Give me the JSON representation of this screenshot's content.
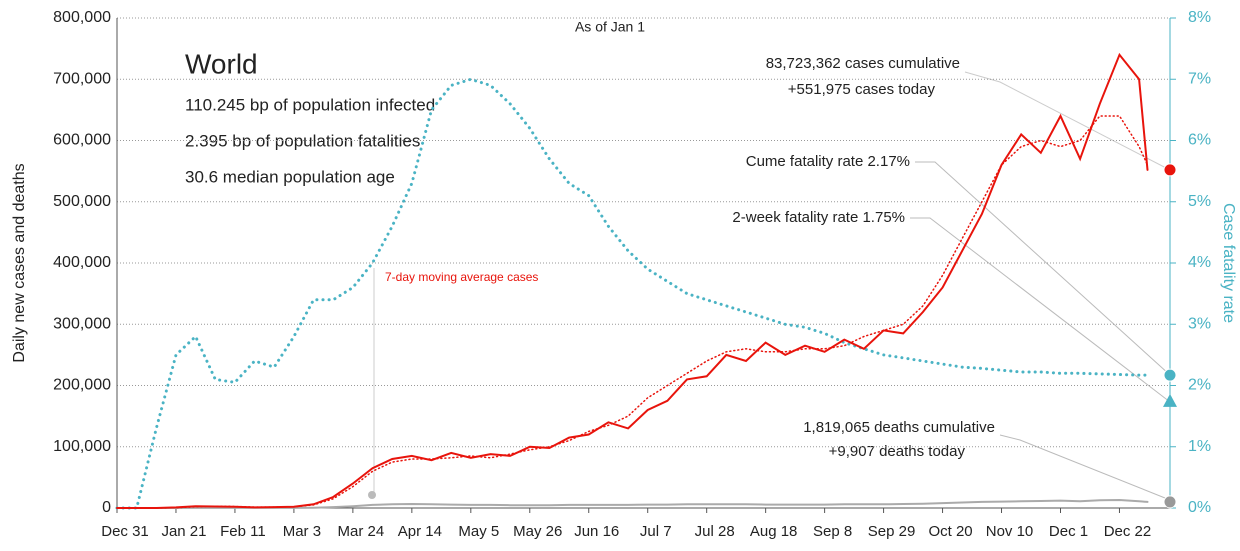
{
  "chart_data": {
    "type": "line",
    "title": "World",
    "subtitle": "As of Jan 1",
    "stats": [
      "110.245 bp of population infected",
      "2.395 bp of population fatalities",
      "30.6 median population age"
    ],
    "y_label": "Daily new cases and deaths",
    "y2_label": "Case fatality rate",
    "ma_label": "7-day moving average cases",
    "annotations": {
      "cases": [
        "83,723,362 cases cumulative",
        "+551,975 cases today"
      ],
      "cume_rate": "Cume fatality rate 2.17%",
      "two_week": "2-week fatality rate 1.75%",
      "deaths": [
        "1,819,065 deaths cumulative",
        "+9,907 deaths today"
      ]
    },
    "two_week_rate": 1.75,
    "x": [
      0,
      7,
      14,
      21,
      28,
      35,
      42,
      49,
      56,
      63,
      70,
      77,
      84,
      91,
      98,
      105,
      112,
      119,
      126,
      133,
      140,
      147,
      154,
      161,
      168,
      175,
      182,
      189,
      196,
      203,
      210,
      217,
      224,
      231,
      238,
      245,
      252,
      259,
      266,
      273,
      280,
      287,
      294,
      301,
      308,
      315,
      322,
      329,
      336,
      343,
      350,
      357,
      364,
      367
    ],
    "xlim": [
      0,
      375
    ],
    "xticks": [
      {
        "value": 0,
        "label": "Dec 31"
      },
      {
        "value": 21,
        "label": "Jan 21"
      },
      {
        "value": 42,
        "label": "Feb 11"
      },
      {
        "value": 63,
        "label": "Mar 3"
      },
      {
        "value": 84,
        "label": "Mar 24"
      },
      {
        "value": 105,
        "label": "Apr 14"
      },
      {
        "value": 126,
        "label": "May 5"
      },
      {
        "value": 147,
        "label": "May 26"
      },
      {
        "value": 168,
        "label": "Jun 16"
      },
      {
        "value": 189,
        "label": "Jul 7"
      },
      {
        "value": 210,
        "label": "Jul 28"
      },
      {
        "value": 231,
        "label": "Aug 18"
      },
      {
        "value": 252,
        "label": "Sep 8"
      },
      {
        "value": 273,
        "label": "Sep 29"
      },
      {
        "value": 294,
        "label": "Oct 20"
      },
      {
        "value": 315,
        "label": "Nov 10"
      },
      {
        "value": 336,
        "label": "Dec 1"
      },
      {
        "value": 357,
        "label": "Dec 22"
      }
    ],
    "ylim": [
      0,
      800000
    ],
    "yticks": [
      0,
      {
        "value": 100000,
        "label": "100,000"
      },
      {
        "value": 200000,
        "label": "200,000"
      },
      {
        "value": 300000,
        "label": "300,000"
      },
      {
        "value": 400000,
        "label": "400,000"
      },
      {
        "value": 500000,
        "label": "500,000"
      },
      {
        "value": 600000,
        "label": "600,000"
      },
      {
        "value": 700000,
        "label": "700,000"
      },
      {
        "value": 800000,
        "label": "800,000"
      }
    ],
    "y2lim": [
      0,
      8
    ],
    "y2ticks": [
      {
        "value": 0,
        "label": "0%"
      },
      {
        "value": 1,
        "label": "1%"
      },
      {
        "value": 2,
        "label": "2%"
      },
      {
        "value": 3,
        "label": "3%"
      },
      {
        "value": 4,
        "label": "4%"
      },
      {
        "value": 5,
        "label": "5%"
      },
      {
        "value": 6,
        "label": "6%"
      },
      {
        "value": 7,
        "label": "7%"
      },
      {
        "value": 8,
        "label": "8%"
      }
    ],
    "grid": true,
    "series": [
      {
        "name": "Daily cases",
        "color": "#e8140c",
        "style": "solid",
        "values": [
          0,
          0,
          0,
          1000,
          3000,
          2500,
          2000,
          1000,
          1500,
          2000,
          6000,
          18000,
          40000,
          65000,
          80000,
          85000,
          78000,
          90000,
          82000,
          88000,
          85000,
          100000,
          98000,
          115000,
          120000,
          140000,
          130000,
          160000,
          175000,
          210000,
          215000,
          250000,
          240000,
          270000,
          250000,
          265000,
          255000,
          275000,
          260000,
          290000,
          285000,
          320000,
          360000,
          420000,
          480000,
          560000,
          610000,
          580000,
          640000,
          570000,
          660000,
          740000,
          700000,
          551975
        ]
      },
      {
        "name": "7-day moving average cases",
        "color": "#e8140c",
        "style": "dotted",
        "values": [
          0,
          0,
          0,
          500,
          2000,
          3000,
          2500,
          1500,
          1500,
          2000,
          5000,
          15000,
          35000,
          60000,
          75000,
          80000,
          80000,
          82000,
          85000,
          82000,
          88000,
          95000,
          100000,
          110000,
          125000,
          135000,
          150000,
          180000,
          200000,
          220000,
          240000,
          255000,
          260000,
          255000,
          255000,
          260000,
          260000,
          265000,
          280000,
          290000,
          300000,
          330000,
          380000,
          440000,
          500000,
          560000,
          590000,
          600000,
          590000,
          600000,
          640000,
          640000,
          590000,
          560000
        ]
      },
      {
        "name": "Daily deaths",
        "color": "#aaaaaa",
        "style": "solid",
        "values": [
          0,
          0,
          0,
          50,
          100,
          100,
          100,
          100,
          100,
          200,
          500,
          1500,
          3000,
          5000,
          6000,
          6500,
          6000,
          5500,
          5000,
          5000,
          4500,
          4500,
          4500,
          5000,
          5000,
          5000,
          5000,
          5500,
          5500,
          6000,
          6000,
          6000,
          6000,
          5500,
          5500,
          5500,
          5500,
          6000,
          6000,
          6000,
          6500,
          7000,
          8000,
          9000,
          10000,
          10500,
          11000,
          11500,
          12000,
          11000,
          12500,
          13000,
          11000,
          9907
        ]
      },
      {
        "name": "Case fatality rate",
        "color": "#4ab3c4",
        "style": "dotted",
        "axis": "y2",
        "values": [
          0,
          0,
          1.3,
          2.5,
          2.8,
          2.1,
          2.05,
          2.4,
          2.3,
          2.8,
          3.4,
          3.4,
          3.6,
          4.0,
          4.6,
          5.3,
          6.5,
          6.9,
          7.0,
          6.9,
          6.6,
          6.2,
          5.7,
          5.3,
          5.1,
          4.6,
          4.2,
          3.9,
          3.7,
          3.5,
          3.4,
          3.3,
          3.2,
          3.1,
          3.0,
          2.95,
          2.85,
          2.7,
          2.6,
          2.5,
          2.45,
          2.4,
          2.35,
          2.3,
          2.28,
          2.25,
          2.22,
          2.22,
          2.2,
          2.2,
          2.19,
          2.18,
          2.17,
          2.17
        ]
      }
    ]
  }
}
